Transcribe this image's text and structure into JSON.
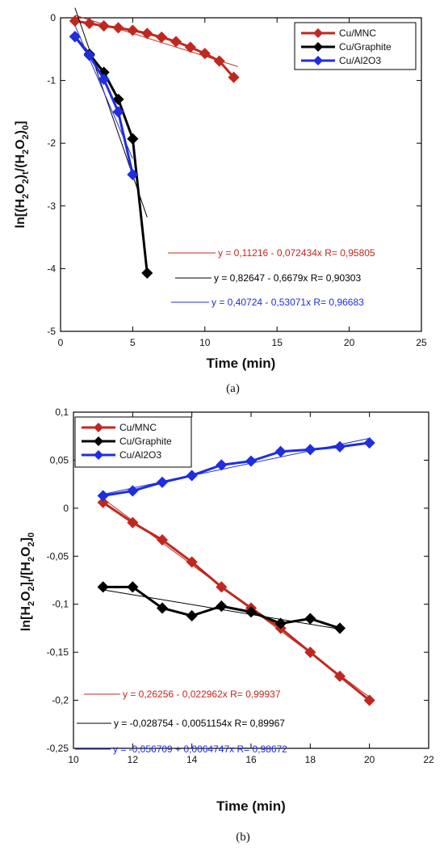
{
  "chart_data": [
    {
      "type": "line",
      "caption": "(a)",
      "xlabel": "Time (min)",
      "ylabel": "ln[(H2O2)t/(H2O2)0]",
      "xlim": [
        0,
        25
      ],
      "ylim": [
        -5,
        0
      ],
      "xticks": [
        0,
        5,
        10,
        15,
        20,
        25
      ],
      "yticks": [
        0,
        -1,
        -2,
        -3,
        -4,
        -5
      ],
      "xtick_labels": [
        "0",
        "5",
        "10",
        "15",
        "20",
        "25"
      ],
      "ytick_labels": [
        "0",
        "-1",
        "-2",
        "-3",
        "-4",
        "-5"
      ],
      "legend_position": "top-right",
      "series": [
        {
          "name": "Cu/MNC",
          "color": "#c0281f",
          "marker": "diamond",
          "x": [
            1,
            2,
            3,
            4,
            5,
            6,
            7,
            8,
            9,
            10,
            11,
            12
          ],
          "y": [
            -0.05,
            -0.09,
            -0.13,
            -0.16,
            -0.2,
            -0.25,
            -0.31,
            -0.38,
            -0.47,
            -0.57,
            -0.69,
            -0.95
          ],
          "fit": {
            "x": [
              1,
              12.3
            ],
            "label": "y = 0,11216 - 0,072434x   R= 0,95805",
            "slope": -0.072434,
            "intercept": 0.11216
          }
        },
        {
          "name": "Cu/Graphite",
          "color": "#000000",
          "marker": "diamond",
          "x": [
            1,
            2,
            3,
            4,
            5,
            6
          ],
          "y": [
            -0.3,
            -0.58,
            -0.87,
            -1.3,
            -1.93,
            -4.07
          ],
          "fit": {
            "x": [
              1,
              6
            ],
            "label": "y = 0,82647 - 0,6679x   R= 0,90303",
            "slope": -0.6679,
            "intercept": 0.82647
          }
        },
        {
          "name": "Cu/Al2O3",
          "color": "#1f2ee0",
          "marker": "diamond",
          "x": [
            1,
            2,
            3,
            4,
            5
          ],
          "y": [
            -0.3,
            -0.6,
            -0.98,
            -1.5,
            -2.5
          ],
          "fit": {
            "x": [
              1,
              5
            ],
            "label": "y = 0,40724 - 0,53071x   R= 0,96683",
            "slope": -0.53071,
            "intercept": 0.40724
          }
        }
      ]
    },
    {
      "type": "line",
      "caption": "(b)",
      "xlabel": "Time (min)",
      "ylabel": "ln[H2O2]t/[H2O2]0",
      "xlim": [
        10,
        22
      ],
      "ylim": [
        -0.25,
        0.1
      ],
      "xticks": [
        10,
        12,
        14,
        16,
        18,
        20,
        22
      ],
      "yticks": [
        0.1,
        0.05,
        0,
        -0.05,
        -0.1,
        -0.15,
        -0.2,
        -0.25
      ],
      "xtick_labels": [
        "10",
        "12",
        "14",
        "16",
        "18",
        "20",
        "22"
      ],
      "ytick_labels": [
        "0,1",
        "0,05",
        "0",
        "-0,05",
        "-0,1",
        "-0,15",
        "-0,2",
        "-0,25"
      ],
      "legend_position": "top-left",
      "series": [
        {
          "name": "Cu/MNC",
          "color": "#c0281f",
          "marker": "diamond",
          "x": [
            11,
            12,
            13,
            14,
            15,
            16,
            17,
            18,
            19,
            20
          ],
          "y": [
            0.006,
            -0.015,
            -0.033,
            -0.056,
            -0.082,
            -0.104,
            -0.125,
            -0.15,
            -0.175,
            -0.2
          ],
          "fit": {
            "x": [
              11,
              20
            ],
            "label": "y = 0,26256 - 0,022962x   R= 0,99937",
            "slope": -0.022962,
            "intercept": 0.26256
          }
        },
        {
          "name": "Cu/Graphite",
          "color": "#000000",
          "marker": "diamond",
          "x": [
            11,
            12,
            13,
            14,
            15,
            16,
            17,
            18,
            19
          ],
          "y": [
            -0.082,
            -0.082,
            -0.104,
            -0.112,
            -0.102,
            -0.108,
            -0.12,
            -0.115,
            -0.125
          ],
          "fit": {
            "x": [
              11,
              19
            ],
            "label": "y = -0,028754 - 0,0051154x   R= 0,89967",
            "slope": -0.0051154,
            "intercept": -0.028754
          }
        },
        {
          "name": "Cu/Al2O3",
          "color": "#1f2ee0",
          "marker": "diamond",
          "x": [
            11,
            12,
            13,
            14,
            15,
            16,
            17,
            18,
            19,
            20
          ],
          "y": [
            0.013,
            0.018,
            0.027,
            0.034,
            0.045,
            0.049,
            0.059,
            0.061,
            0.064,
            0.068
          ],
          "fit": {
            "x": [
              11,
              20
            ],
            "label": "y = -0,056709 + 0,0064747x   R= 0,98672",
            "slope": 0.0064747,
            "intercept": -0.056709
          }
        }
      ]
    }
  ]
}
